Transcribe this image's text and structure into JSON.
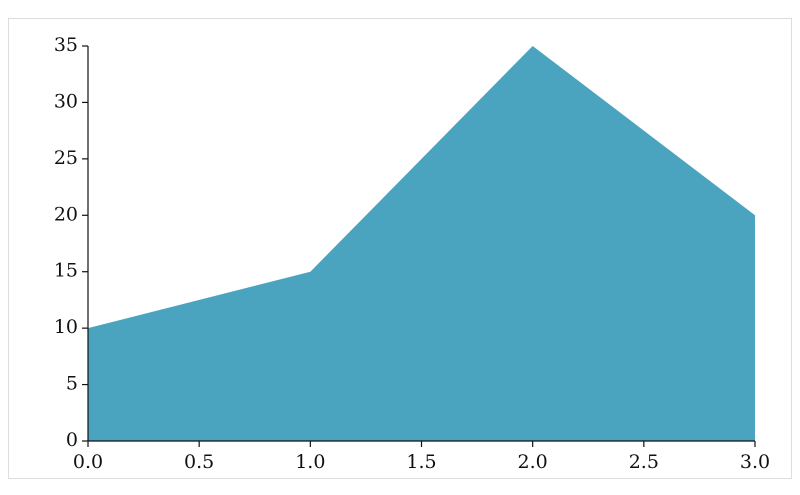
{
  "chart_data": {
    "type": "area",
    "x": [
      0,
      1,
      2,
      3
    ],
    "values": [
      10,
      15,
      35,
      20
    ],
    "color": "#4aa3bf",
    "xlim": [
      0,
      3
    ],
    "ylim": [
      0,
      35
    ],
    "xticks": [
      {
        "value": 0,
        "label": "0.0"
      },
      0.5,
      {
        "value": 1,
        "label": "1.0"
      },
      1.5,
      {
        "value": 2,
        "label": "2.0"
      },
      2.5,
      {
        "value": 3,
        "label": "3.0"
      }
    ],
    "yticks": [
      0,
      5,
      10,
      15,
      20,
      25,
      30,
      35
    ]
  }
}
